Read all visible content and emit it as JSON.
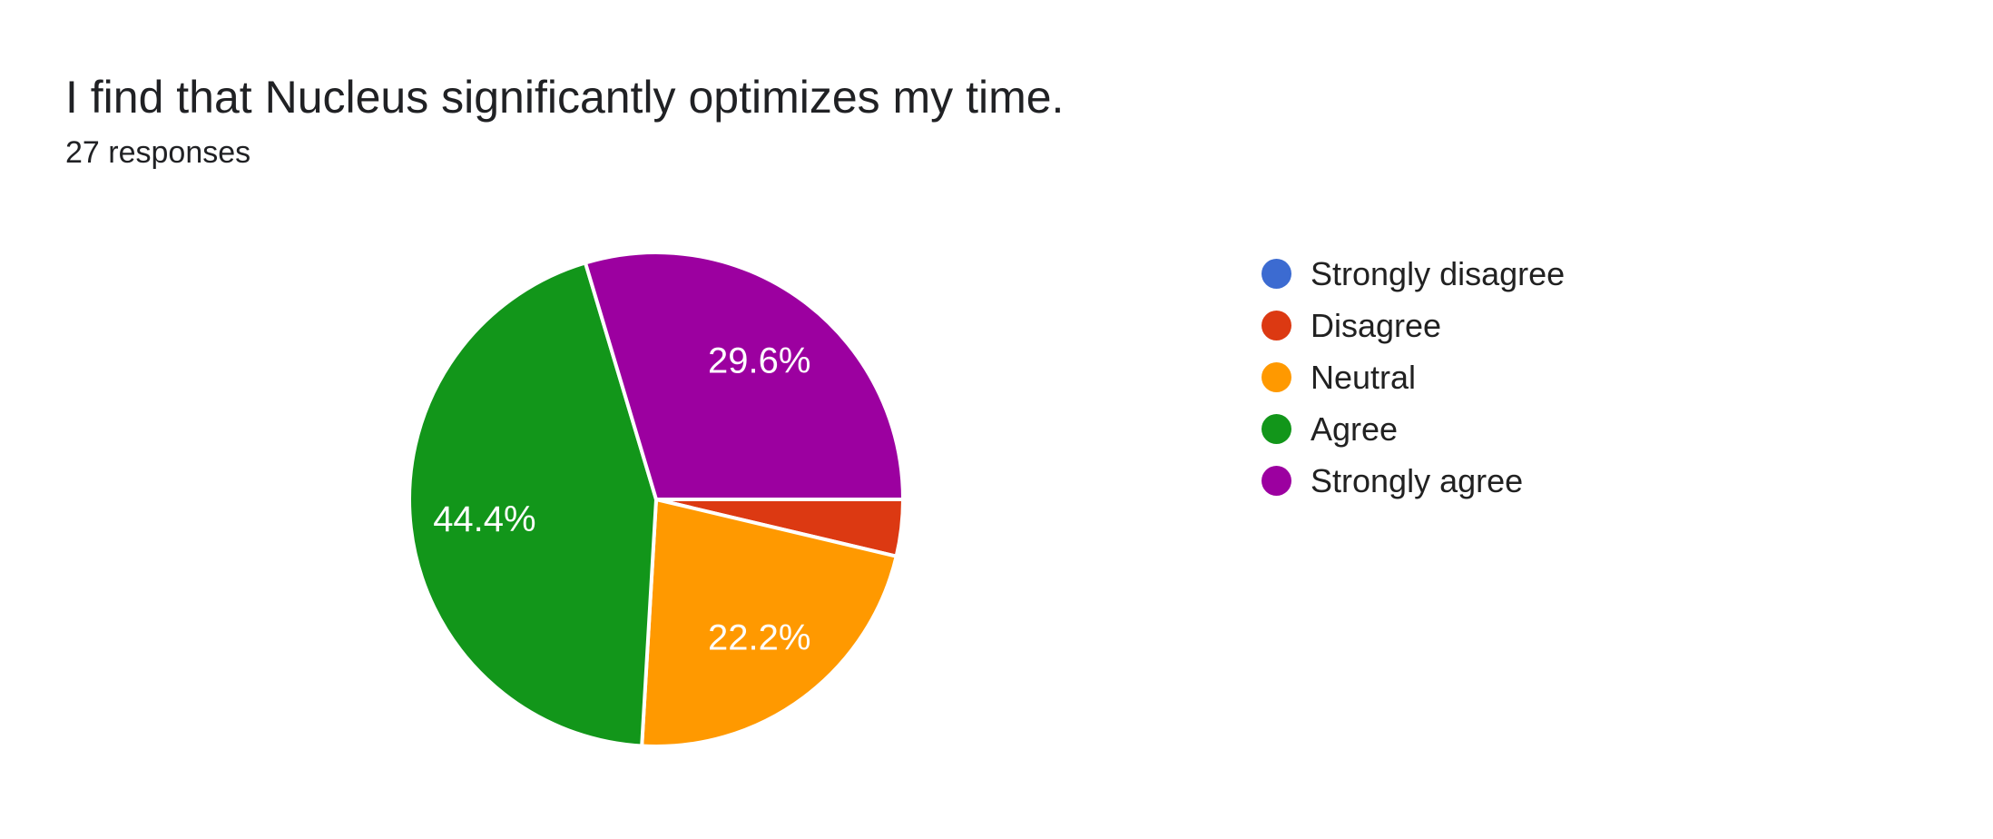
{
  "header": {
    "title": "I find that Nucleus significantly optimizes my time.",
    "subtitle": "27 responses"
  },
  "chart_data": {
    "type": "pie",
    "title": "I find that Nucleus significantly optimizes my time.",
    "subtitle": "27 responses",
    "total_responses": 27,
    "legend_position": "right",
    "start_angle_clockwise_from_top_deg": 90,
    "direction": "clockwise",
    "slice_separator_color": "#ffffff",
    "label_text_color": "#ffffff",
    "slices": [
      {
        "label": "Strongly disagree",
        "value": 0,
        "percent": 0.0,
        "percent_label": "",
        "color": "#3c6bd1",
        "show_label": false
      },
      {
        "label": "Disagree",
        "value": 1,
        "percent": 3.7,
        "percent_label": "",
        "color": "#dc3912",
        "show_label": false
      },
      {
        "label": "Neutral",
        "value": 6,
        "percent": 22.2,
        "percent_label": "22.2%",
        "color": "#ff9900",
        "show_label": true
      },
      {
        "label": "Agree",
        "value": 12,
        "percent": 44.4,
        "percent_label": "44.4%",
        "color": "#12961a",
        "show_label": true
      },
      {
        "label": "Strongly agree",
        "value": 8,
        "percent": 29.6,
        "percent_label": "29.6%",
        "color": "#9c00a0",
        "show_label": true
      }
    ]
  }
}
